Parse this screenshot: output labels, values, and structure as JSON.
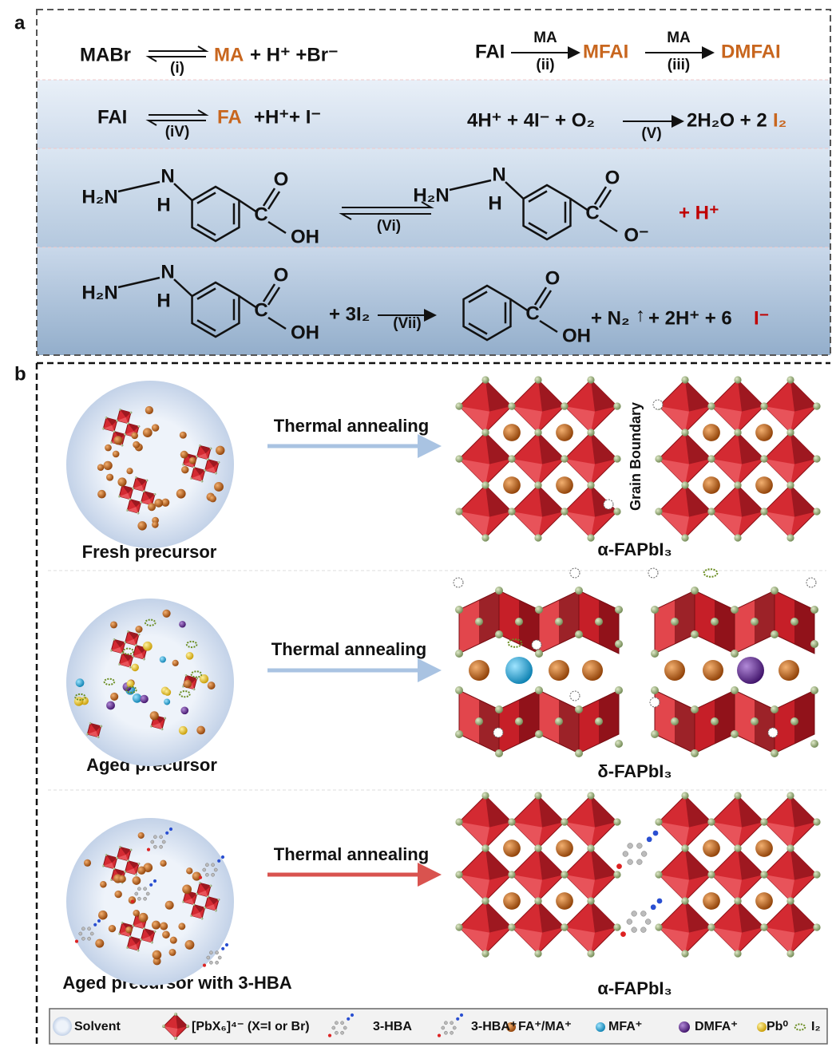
{
  "panel_a": {
    "label": "a",
    "reaction_i": {
      "reactant": "MABr",
      "step": "(i)",
      "product": "MA",
      "rest": "+ H⁺ +Br⁻"
    },
    "reaction_ii_iii": {
      "reactant": "FAI",
      "reagent_1": "MA",
      "step_1": "(ii)",
      "product_1": "MFAI",
      "reagent_2": "MA",
      "step_2": "(iii)",
      "product_2": "DMFAI"
    },
    "reaction_iv": {
      "reactant": "FAI",
      "step": "(iV)",
      "product": "FA",
      "rest": "+H⁺+ I⁻"
    },
    "reaction_v": {
      "reactants": "4H⁺ + 4I⁻ + O₂",
      "step": "(V)",
      "products": "2H₂O + 2",
      "iodine": "I₂"
    },
    "reaction_vi": {
      "reactant_atoms": [
        "H₂N",
        "N",
        "H",
        "C",
        "O",
        "OH"
      ],
      "step": "(Vi)",
      "product_atoms": [
        "H₂N",
        "N",
        "H",
        "C",
        "O",
        "O⁻"
      ],
      "proton": "+ H⁺"
    },
    "reaction_vii": {
      "reactant_atoms": [
        "H₂N",
        "N",
        "H",
        "C",
        "O",
        "OH"
      ],
      "reagent": "+ 3I₂",
      "step": "(Vii)",
      "product_atoms": [
        "C",
        "O",
        "OH"
      ],
      "nitrogen": "+ N₂",
      "gas": "↑",
      "products": "+ 2H⁺ + 6",
      "iodide": "I⁻"
    }
  },
  "panel_b": {
    "label": "b",
    "grain_boundary": "Grain Boundary",
    "rows": [
      {
        "precursor": "Fresh precursor",
        "process": "Thermal annealing",
        "phase": "α-FAPbI₃"
      },
      {
        "precursor": "Aged precursor",
        "process": "Thermal annealing",
        "phase": "δ-FAPbI₃"
      },
      {
        "precursor": "Aged precursor  with 3-HBA",
        "process": "Thermal annealing",
        "phase": "α-FAPbI₃"
      }
    ],
    "legend": [
      "Solvent",
      "[PbX₆]⁴⁻ (X=I or Br)",
      "3-HBA",
      "3-HBA⁺",
      "FA⁺/MA⁺",
      "MFA⁺",
      "DMFA⁺",
      "Pb⁰",
      "I₂"
    ]
  }
}
